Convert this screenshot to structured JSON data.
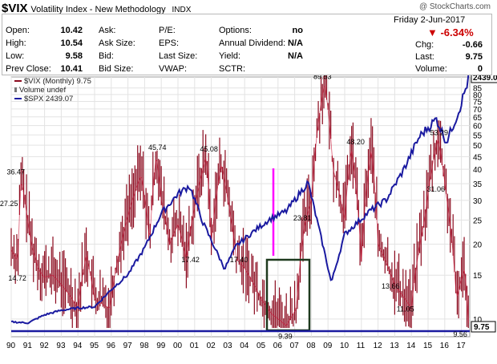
{
  "header": {
    "symbol": "$VIX",
    "name": "Volatility Index - New Methodology",
    "exchange": "INDX",
    "copyright": "@ StockCharts.com"
  },
  "quote": {
    "open_label": "Open:",
    "open": "10.42",
    "high_label": "High:",
    "high": "10.54",
    "low_label": "Low:",
    "low": "9.58",
    "prev_label": "Prev Close:",
    "prev": "10.41",
    "ask_label": "Ask:",
    "ask": "",
    "asksize_label": "Ask Size:",
    "asksize": "",
    "bid_label": "Bid:",
    "bid": "",
    "bidsize_label": "Bid Size:",
    "bidsize": "",
    "pe_label": "P/E:",
    "pe": "",
    "eps_label": "EPS:",
    "eps": "",
    "lastsize_label": "Last Size:",
    "lastsize": "",
    "vwap_label": "VWAP:",
    "vwap": "",
    "options_label": "Options:",
    "options": "no",
    "div_label": "Annual Dividend:",
    "div": "N/A",
    "yield_label": "Yield:",
    "yield": "N/A",
    "sctr_label": "SCTR:",
    "sctr": "",
    "date": "Friday   2-Jun-2017",
    "pct": "▼ -6.34%",
    "chg_label": "Chg:",
    "chg": "-0.66",
    "last_label": "Last:",
    "last": "9.75",
    "volume_label": "Volume:",
    "volume": "0"
  },
  "legend": {
    "vix": "$VIX (Monthly) 9.75",
    "volume": "Volume undef",
    "spx": "$SPX 2439.07"
  },
  "colors": {
    "vix": "#8b0a1e",
    "spx": "#1a1aa0",
    "magenta": "#ff00ff",
    "box": "#1e3a1e"
  },
  "chart_data": {
    "type": "line",
    "series": [
      {
        "name": "$VIX (Monthly)",
        "last": 9.75,
        "points": [
          [
            1990.0,
            19
          ],
          [
            1990.4,
            17
          ],
          [
            1990.6,
            36.47
          ],
          [
            1990.9,
            27.25
          ],
          [
            1991.2,
            20
          ],
          [
            1991.6,
            16
          ],
          [
            1991.95,
            14.72
          ],
          [
            1992.5,
            15
          ],
          [
            1993.5,
            12.5
          ],
          [
            1994.0,
            11
          ],
          [
            1994.5,
            18
          ],
          [
            1995.0,
            12
          ],
          [
            1995.9,
            11
          ],
          [
            1996.6,
            20
          ],
          [
            1997.8,
            38
          ],
          [
            1998.3,
            20
          ],
          [
            1998.7,
            45.74
          ],
          [
            1999.0,
            30
          ],
          [
            1999.5,
            20
          ],
          [
            2000.0,
            24
          ],
          [
            2000.5,
            17.42
          ],
          [
            2001.0,
            28
          ],
          [
            2001.7,
            45.08
          ],
          [
            2002.0,
            20
          ],
          [
            2002.6,
            42
          ],
          [
            2003.0,
            30
          ],
          [
            2003.5,
            17.4
          ],
          [
            2004.0,
            16
          ],
          [
            2005.0,
            12
          ],
          [
            2005.6,
            10.5
          ],
          [
            2006.5,
            9.39
          ],
          [
            2007.1,
            11
          ],
          [
            2007.6,
            23.81
          ],
          [
            2008.0,
            30
          ],
          [
            2008.8,
            89.53
          ],
          [
            2009.3,
            40
          ],
          [
            2010.0,
            25
          ],
          [
            2010.4,
            48.2
          ],
          [
            2011.0,
            17
          ],
          [
            2011.6,
            48
          ],
          [
            2012.0,
            20
          ],
          [
            2013.0,
            13.66
          ],
          [
            2014.0,
            11.05
          ],
          [
            2014.8,
            25
          ],
          [
            2015.6,
            53.29
          ],
          [
            2016.1,
            31.06
          ],
          [
            2016.7,
            12
          ],
          [
            2017.2,
            16
          ],
          [
            2017.42,
            9.56
          ]
        ]
      },
      {
        "name": "$SPX",
        "last": 2439.07,
        "points": [
          [
            1990.0,
            340
          ],
          [
            1991.0,
            330
          ],
          [
            1992.0,
            400
          ],
          [
            1993.0,
            440
          ],
          [
            1994.0,
            460
          ],
          [
            1995.0,
            470
          ],
          [
            1996.0,
            620
          ],
          [
            1997.0,
            750
          ],
          [
            1998.0,
            980
          ],
          [
            1999.0,
            1280
          ],
          [
            2000.0,
            1450
          ],
          [
            2000.7,
            1520
          ],
          [
            2001.5,
            1200
          ],
          [
            2002.8,
            800
          ],
          [
            2003.5,
            1000
          ],
          [
            2004.5,
            1120
          ],
          [
            2005.5,
            1230
          ],
          [
            2006.5,
            1300
          ],
          [
            2007.8,
            1550
          ],
          [
            2008.7,
            1000
          ],
          [
            2009.2,
            680
          ],
          [
            2010.0,
            1100
          ],
          [
            2011.5,
            1300
          ],
          [
            2012.5,
            1400
          ],
          [
            2013.5,
            1650
          ],
          [
            2014.5,
            1950
          ],
          [
            2015.5,
            2100
          ],
          [
            2016.1,
            1900
          ],
          [
            2016.8,
            2150
          ],
          [
            2017.42,
            2439.07
          ]
        ]
      }
    ],
    "x_tick_labels": [
      "90",
      "91",
      "92",
      "93",
      "94",
      "95",
      "96",
      "97",
      "98",
      "99",
      "00",
      "01",
      "02",
      "03",
      "04",
      "05",
      "06",
      "07",
      "08",
      "09",
      "10",
      "11",
      "12",
      "13",
      "14",
      "15",
      "16",
      "17"
    ],
    "y_tick_labels": [
      "85",
      "80",
      "75",
      "70",
      "65",
      "60",
      "55",
      "50",
      "45",
      "40",
      "35",
      "30",
      "25",
      "20",
      "15",
      "10"
    ],
    "annotations": [
      "36.47",
      "27.25",
      "14.72",
      "45.74",
      "17.42",
      "45.08",
      "17.40",
      "23.81",
      "9.39",
      "89.53",
      "48.20",
      "13.66",
      "11.05",
      "53.29",
      "31.06",
      "9.56"
    ],
    "last_labels": {
      "spx": "2439.07",
      "vix": "9.75"
    },
    "ylim": [
      9,
      90
    ],
    "xlim": [
      1990,
      2017.5
    ]
  }
}
